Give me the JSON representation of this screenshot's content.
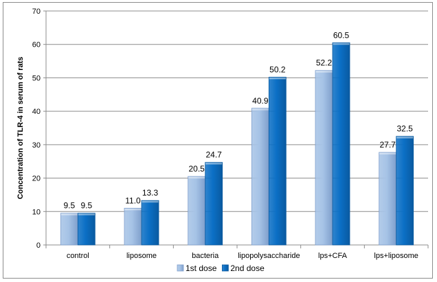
{
  "chart_data": {
    "type": "bar",
    "categories": [
      "control",
      "liposome",
      "bacteria",
      "lipopolysaccharide",
      "lps+CFA",
      "lps+liposome"
    ],
    "series": [
      {
        "name": "1st dose",
        "values": [
          9.5,
          11.0,
          20.5,
          40.9,
          52.2,
          27.7
        ],
        "labels": [
          "9.5",
          "11.0",
          "20.5",
          "40.9",
          "52.2",
          "27.7"
        ],
        "color": "#a6c3e6",
        "edge_color": "#7f9fcc"
      },
      {
        "name": "2nd dose",
        "values": [
          9.5,
          13.3,
          24.7,
          50.2,
          60.5,
          32.5
        ],
        "labels": [
          "9.5",
          "13.3",
          "24.7",
          "50.2",
          "60.5",
          "32.5"
        ],
        "color": "#0b6fc5",
        "edge_color": "#0a5aa0"
      }
    ],
    "ylabel": "Concentration of TLR-4 in serum of rats",
    "ylim": [
      0,
      70
    ],
    "yticks": [
      0,
      10,
      20,
      30,
      40,
      50,
      60,
      70
    ],
    "grid": true,
    "legend_position": "bottom"
  }
}
